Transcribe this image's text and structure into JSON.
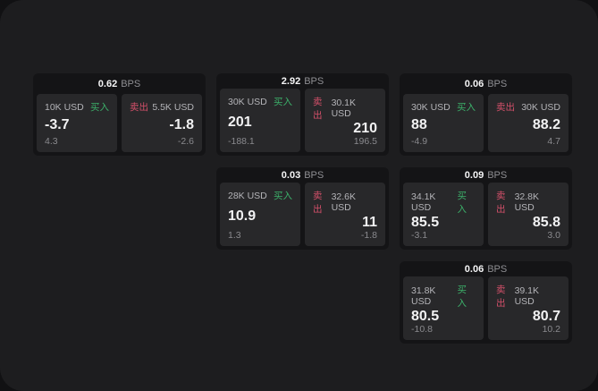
{
  "labels": {
    "bps": "BPS",
    "buy": "买入",
    "sell": "卖出"
  },
  "colors": {
    "surface": "#1d1d1f",
    "card": "#141416",
    "panel": "#28282a",
    "buy_green": "#3cb06a",
    "sell_red": "#d4506a"
  },
  "cards": [
    {
      "bps": "0.62",
      "buy": {
        "notional": "10K USD",
        "price": "-3.7",
        "delta": "4.3"
      },
      "sell": {
        "notional": "5.5K USD",
        "price": "-1.8",
        "delta": "-2.6"
      }
    },
    {
      "bps": "2.92",
      "buy": {
        "notional": "30K USD",
        "price": "201",
        "delta": "-188.1"
      },
      "sell": {
        "notional": "30.1K USD",
        "price": "210",
        "delta": "196.5"
      }
    },
    {
      "bps": "0.06",
      "buy": {
        "notional": "30K USD",
        "price": "88",
        "delta": "-4.9"
      },
      "sell": {
        "notional": "30K USD",
        "price": "88.2",
        "delta": "4.7"
      }
    },
    {
      "bps": "0.03",
      "buy": {
        "notional": "28K USD",
        "price": "10.9",
        "delta": "1.3"
      },
      "sell": {
        "notional": "32.6K USD",
        "price": "11",
        "delta": "-1.8"
      }
    },
    {
      "bps": "0.09",
      "buy": {
        "notional": "34.1K USD",
        "price": "85.5",
        "delta": "-3.1"
      },
      "sell": {
        "notional": "32.8K USD",
        "price": "85.8",
        "delta": "3.0"
      }
    },
    {
      "bps": "0.06",
      "buy": {
        "notional": "31.8K USD",
        "price": "80.5",
        "delta": "-10.8"
      },
      "sell": {
        "notional": "39.1K USD",
        "price": "80.7",
        "delta": "10.2"
      }
    }
  ]
}
